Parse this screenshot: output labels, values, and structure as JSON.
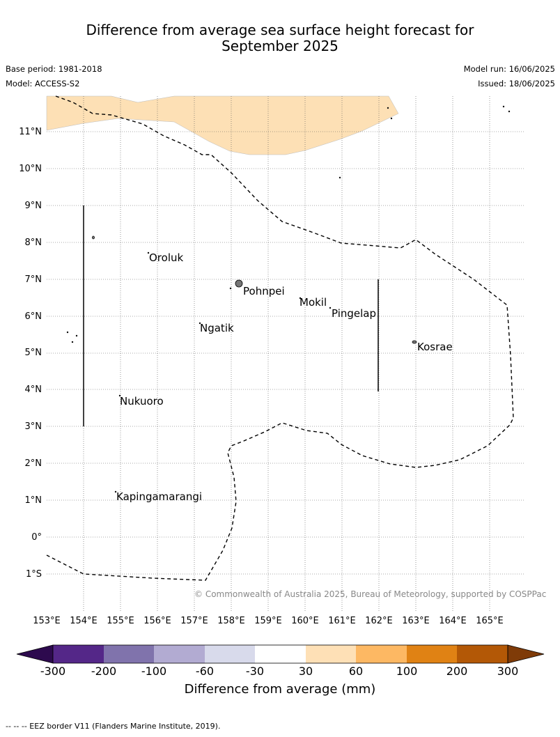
{
  "title_line1": "Difference from average sea surface height forecast for",
  "title_line2": "September 2025",
  "base_period": "Base period: 1981-2018",
  "model": "Model: ACCESS-S2",
  "model_run": "Model run: 16/06/2025",
  "issued": "Issued: 18/06/2025",
  "lat_labels": [
    "11°N",
    "10°N",
    "9°N",
    "8°N",
    "7°N",
    "6°N",
    "5°N",
    "4°N",
    "3°N",
    "2°N",
    "1°N",
    "0°",
    "1°S"
  ],
  "lon_labels": [
    "153°E",
    "154°E",
    "155°E",
    "156°E",
    "157°E",
    "158°E",
    "159°E",
    "160°E",
    "161°E",
    "162°E",
    "163°E",
    "164°E",
    "165°E"
  ],
  "places": [
    "Oroluk",
    "Pohnpei",
    "Mokil",
    "Pingelap",
    "Ngatik",
    "Kosrae",
    "Nukuoro",
    "Kapingamarangi"
  ],
  "copyright": "© Commonwealth of Australia 2025, Bureau of Meteorology, supported by COSPPac",
  "colorbar": {
    "ticks": [
      "-300",
      "-200",
      "-100",
      "-60",
      "-30",
      "30",
      "60",
      "100",
      "200",
      "300"
    ],
    "colors": [
      "#2d0a4e",
      "#542788",
      "#8073ac",
      "#b2abd2",
      "#d8daeb",
      "#ffffff",
      "#fee0b6",
      "#fdb863",
      "#e08214",
      "#b35806",
      "#7f3b08"
    ],
    "label": "Difference from average (mm)"
  },
  "footer": "--  --  -- EEZ border V11 (Flanders Marine Institute, 2019)."
}
